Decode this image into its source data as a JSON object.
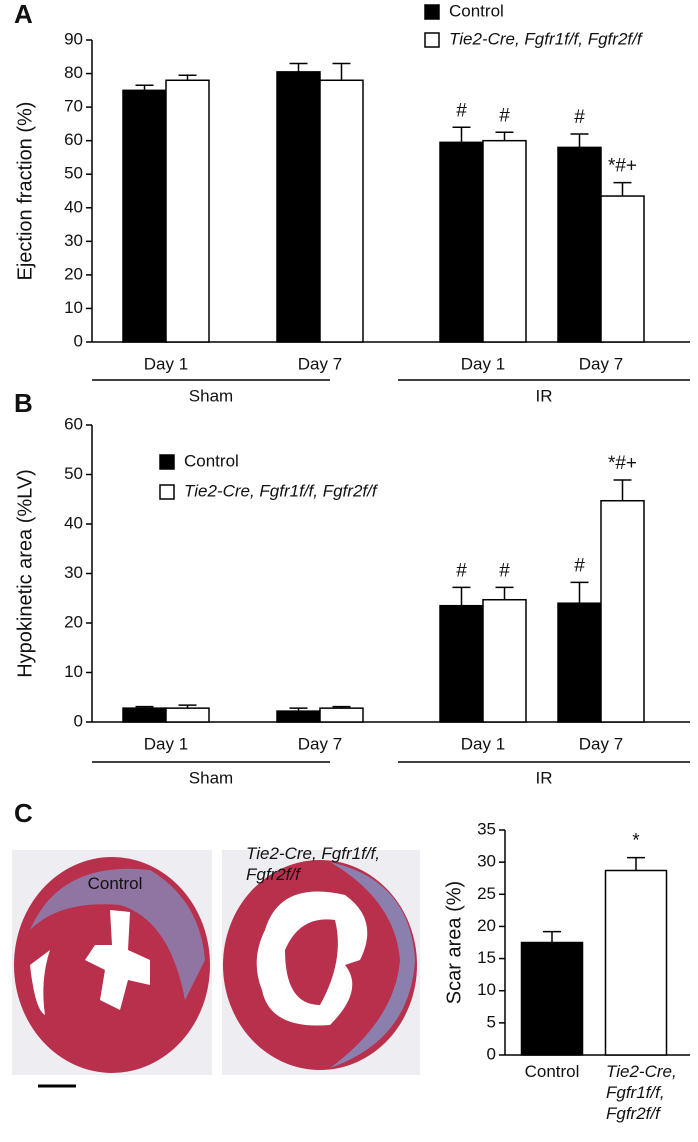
{
  "chart_data": [
    {
      "type": "bar",
      "panel_label": "A",
      "y_label": "Ejection fraction (%)",
      "categories": [
        "Day 1",
        "Day 7",
        "Day 1",
        "Day 7"
      ],
      "groups": [
        "Sham",
        "IR"
      ],
      "ylim": [
        0,
        90
      ],
      "yticks": [
        0,
        10,
        20,
        30,
        40,
        50,
        60,
        70,
        80,
        90
      ],
      "legend_position": "top-right",
      "series": [
        {
          "name": "Control",
          "color": "#000000",
          "values": [
            75,
            80.5,
            59.5,
            58
          ],
          "errors": [
            1.5,
            2.5,
            4.5,
            4
          ],
          "annotations": [
            null,
            null,
            "#",
            "#"
          ]
        },
        {
          "name": "Tie2-Cre, Fgfr1f/f, Fgfr2f/f",
          "color": "#ffffff",
          "values": [
            78,
            78,
            60,
            43.5
          ],
          "errors": [
            1.5,
            5,
            2.5,
            4
          ],
          "annotations": [
            null,
            null,
            "#",
            "*#+"
          ]
        }
      ]
    },
    {
      "type": "bar",
      "panel_label": "B",
      "y_label": "Hypokinetic area (%LV)",
      "categories": [
        "Day 1",
        "Day 7",
        "Day 1",
        "Day 7"
      ],
      "groups": [
        "Sham",
        "IR"
      ],
      "ylim": [
        0,
        60
      ],
      "yticks": [
        0,
        10,
        20,
        30,
        40,
        50,
        60
      ],
      "legend_position": "top-left",
      "series": [
        {
          "name": "Control",
          "color": "#000000",
          "values": [
            2.8,
            2.2,
            23.5,
            24
          ],
          "errors": [
            0.3,
            0.6,
            3.7,
            4.2
          ],
          "annotations": [
            null,
            null,
            "#",
            "#"
          ]
        },
        {
          "name": "Tie2-Cre, Fgfr1f/f, Fgfr2f/f",
          "color": "#ffffff",
          "values": [
            2.8,
            2.8,
            24.7,
            44.7
          ],
          "errors": [
            0.6,
            0.3,
            2.5,
            4.2
          ],
          "annotations": [
            null,
            null,
            "#",
            "*#+"
          ]
        }
      ]
    },
    {
      "type": "bar",
      "panel_label": "C",
      "y_label": "Scar area (%)",
      "categories": [
        "Control",
        "Tie2-Cre, Fgfr1f/f, Fgfr2f/f"
      ],
      "ylim": [
        0,
        35
      ],
      "yticks": [
        0,
        5,
        10,
        15,
        20,
        25,
        30,
        35
      ],
      "values": [
        17.5,
        28.7
      ],
      "errors": [
        1.7,
        2
      ],
      "annotations": [
        null,
        "*"
      ],
      "colors": [
        "#000000",
        "#ffffff"
      ]
    }
  ],
  "images": {
    "captions": [
      "Control",
      "Tie2-Cre, Fgfr1f/f, Fgfr2f/f"
    ]
  }
}
